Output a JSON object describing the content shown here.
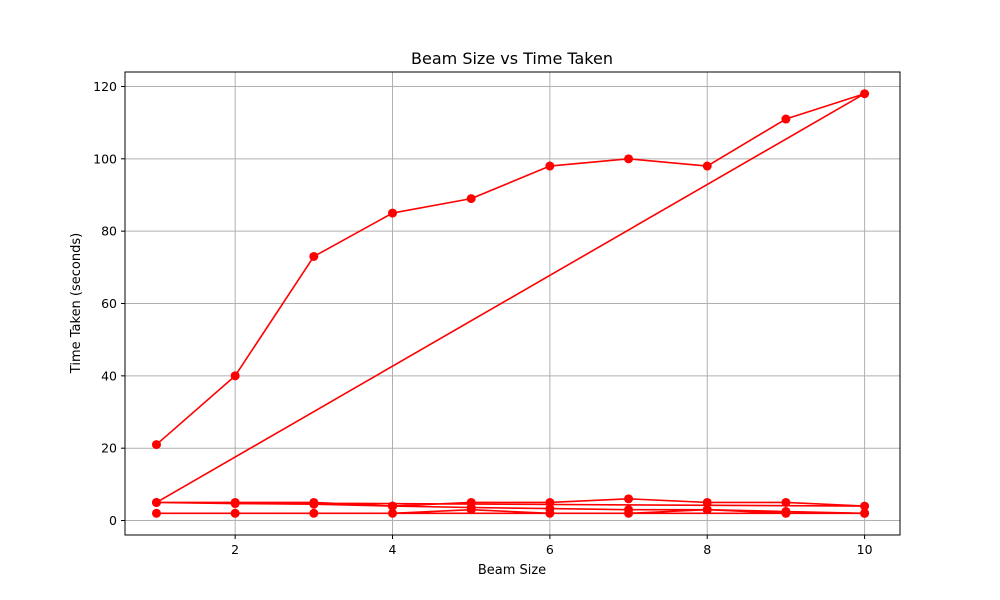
{
  "chart_data": {
    "type": "line",
    "title": "Beam Size vs Time Taken",
    "xlabel": "Beam Size",
    "ylabel": "Time Taken (seconds)",
    "xlim": [
      0.6,
      10.45
    ],
    "ylim": [
      -4,
      124
    ],
    "xticks": [
      2,
      4,
      6,
      8,
      10
    ],
    "yticks": [
      0,
      20,
      40,
      60,
      80,
      100,
      120
    ],
    "grid": true,
    "color": "#ff0000",
    "marker": "circle",
    "x": [
      1,
      2,
      3,
      4,
      5,
      6,
      7,
      8,
      9,
      10,
      1,
      2,
      3,
      4,
      5,
      6,
      7,
      8,
      9,
      10,
      1,
      2,
      3,
      4,
      5,
      6,
      7,
      8,
      9,
      10,
      1,
      2,
      3,
      4,
      5,
      6,
      7,
      8,
      9,
      10
    ],
    "y": [
      21,
      40,
      73,
      85,
      89,
      98,
      100,
      98,
      111,
      118,
      5,
      5,
      5,
      4,
      5,
      5,
      6,
      5,
      5,
      4,
      5,
      4.7,
      4.5,
      4,
      3.6,
      3.3,
      3,
      3,
      2.5,
      2,
      2,
      2,
      2,
      2,
      3,
      2,
      2,
      3,
      2,
      2
    ]
  }
}
